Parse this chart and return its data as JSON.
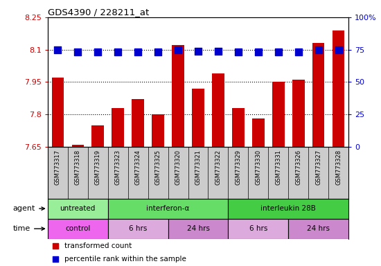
{
  "title": "GDS4390 / 228211_at",
  "samples": [
    "GSM773317",
    "GSM773318",
    "GSM773319",
    "GSM773323",
    "GSM773324",
    "GSM773325",
    "GSM773320",
    "GSM773321",
    "GSM773322",
    "GSM773329",
    "GSM773330",
    "GSM773331",
    "GSM773326",
    "GSM773327",
    "GSM773328"
  ],
  "transformed_count": [
    7.97,
    7.66,
    7.75,
    7.83,
    7.87,
    7.8,
    8.12,
    7.92,
    7.99,
    7.83,
    7.78,
    7.95,
    7.96,
    8.13,
    8.19
  ],
  "percentile_rank": [
    75,
    73,
    73,
    73,
    73,
    73,
    75,
    74,
    74,
    73,
    73,
    73,
    73,
    75,
    75
  ],
  "ylim_left": [
    7.65,
    8.25
  ],
  "ylim_right": [
    0,
    100
  ],
  "yticks_left": [
    7.65,
    7.8,
    7.95,
    8.1,
    8.25
  ],
  "yticks_right": [
    0,
    25,
    50,
    75,
    100
  ],
  "ytick_labels_left": [
    "7.65",
    "7.8",
    "7.95",
    "8.1",
    "8.25"
  ],
  "ytick_labels_right": [
    "0",
    "25",
    "50",
    "75",
    "100%"
  ],
  "hlines": [
    7.8,
    7.95,
    8.1
  ],
  "bar_color": "#CC0000",
  "dot_color": "#0000CC",
  "agent_groups": [
    {
      "label": "untreated",
      "start": 0,
      "end": 3,
      "color": "#99EE99"
    },
    {
      "label": "interferon-α",
      "start": 3,
      "end": 9,
      "color": "#66DD66"
    },
    {
      "label": "interleukin 28B",
      "start": 9,
      "end": 15,
      "color": "#44CC44"
    }
  ],
  "time_groups": [
    {
      "label": "control",
      "start": 0,
      "end": 3,
      "color": "#EE66EE"
    },
    {
      "label": "6 hrs",
      "start": 3,
      "end": 6,
      "color": "#DDAADD"
    },
    {
      "label": "24 hrs",
      "start": 6,
      "end": 9,
      "color": "#CC88CC"
    },
    {
      "label": "6 hrs",
      "start": 9,
      "end": 12,
      "color": "#DDAADD"
    },
    {
      "label": "24 hrs",
      "start": 12,
      "end": 15,
      "color": "#CC88CC"
    }
  ],
  "legend_items": [
    {
      "label": "transformed count",
      "color": "#CC0000"
    },
    {
      "label": "percentile rank within the sample",
      "color": "#0000CC"
    }
  ],
  "bar_width": 0.6,
  "dot_size": 55,
  "tick_color_left": "#CC0000",
  "tick_color_right": "#0000CC",
  "grid_linestyle": ":",
  "grid_color": "black",
  "grid_linewidth": 0.8,
  "sample_box_color": "#CCCCCC",
  "sample_text_fontsize": 6.0
}
